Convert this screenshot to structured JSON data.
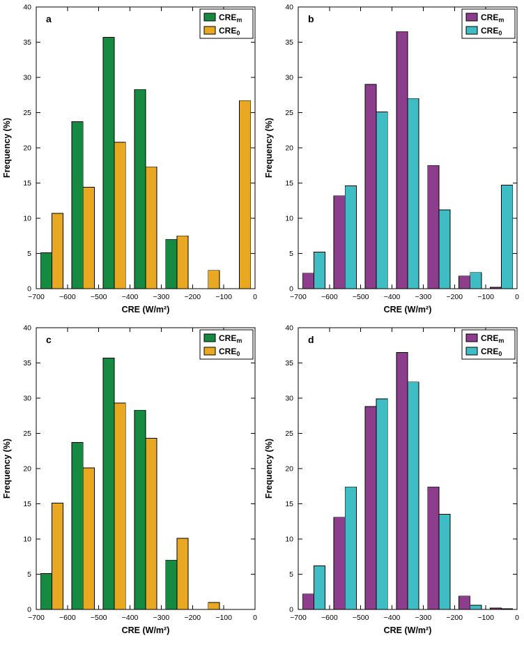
{
  "figure": {
    "background": "#ffffff",
    "panel_letters": [
      "a",
      "b",
      "c",
      "d"
    ]
  },
  "colors": {
    "green": "#178a42",
    "yellow": "#e9a821",
    "purple": "#8c3d8c",
    "cyan": "#3fbdc5",
    "axis": "#000000"
  },
  "chart_data": [
    {
      "type": "bar",
      "panel": "a",
      "categories": [
        -650,
        -550,
        -450,
        -350,
        -250,
        -150,
        -50
      ],
      "series": [
        {
          "name": "CRE_m",
          "label_main": "CRE",
          "label_sub": "m",
          "color": "#178a42",
          "values": [
            5.1,
            23.7,
            35.7,
            28.3,
            7.0,
            0,
            0
          ]
        },
        {
          "name": "CRE_0",
          "label_main": "CRE",
          "label_sub": "0",
          "color": "#e9a821",
          "values": [
            10.7,
            14.4,
            20.8,
            17.3,
            7.5,
            2.6,
            26.7
          ]
        }
      ],
      "xlabel": "CRE (W/m²)",
      "ylabel": "Frequency (%)",
      "xlim": [
        -700,
        0
      ],
      "ylim": [
        0,
        40
      ],
      "xticks": [
        -700,
        -600,
        -500,
        -400,
        -300,
        -200,
        -100,
        0
      ],
      "yticks": [
        0,
        5,
        10,
        15,
        20,
        25,
        30,
        35,
        40
      ],
      "bar_width_units": 36,
      "grid": false,
      "legend_position": "top-right"
    },
    {
      "type": "bar",
      "panel": "b",
      "categories": [
        -650,
        -550,
        -450,
        -350,
        -250,
        -150,
        -50
      ],
      "series": [
        {
          "name": "CRE_m",
          "label_main": "CRE",
          "label_sub": "m",
          "color": "#8c3d8c",
          "values": [
            2.2,
            13.2,
            29.0,
            36.5,
            17.5,
            1.8,
            0.2
          ]
        },
        {
          "name": "CRE_0",
          "label_main": "CRE",
          "label_sub": "0",
          "color": "#3fbdc5",
          "values": [
            5.2,
            14.6,
            25.1,
            27.0,
            11.2,
            2.3,
            14.7
          ]
        }
      ],
      "xlabel": "CRE (W/m²)",
      "ylabel": "Frequency (%)",
      "xlim": [
        -700,
        0
      ],
      "ylim": [
        0,
        40
      ],
      "xticks": [
        -700,
        -600,
        -500,
        -400,
        -300,
        -200,
        -100,
        0
      ],
      "yticks": [
        0,
        5,
        10,
        15,
        20,
        25,
        30,
        35,
        40
      ],
      "bar_width_units": 36,
      "grid": false,
      "legend_position": "top-right"
    },
    {
      "type": "bar",
      "panel": "c",
      "categories": [
        -650,
        -550,
        -450,
        -350,
        -250,
        -150,
        -50
      ],
      "series": [
        {
          "name": "CRE_m",
          "label_main": "CRE",
          "label_sub": "m",
          "color": "#178a42",
          "values": [
            5.1,
            23.7,
            35.7,
            28.3,
            7.0,
            0,
            0
          ]
        },
        {
          "name": "CRE_0",
          "label_main": "CRE",
          "label_sub": "0",
          "color": "#e9a821",
          "values": [
            15.1,
            20.1,
            29.3,
            24.3,
            10.1,
            1.0,
            0
          ]
        }
      ],
      "xlabel": "CRE (W/m²)",
      "ylabel": "Frequency (%)",
      "xlim": [
        -700,
        0
      ],
      "ylim": [
        0,
        40
      ],
      "xticks": [
        -700,
        -600,
        -500,
        -400,
        -300,
        -200,
        -100,
        0
      ],
      "yticks": [
        0,
        5,
        10,
        15,
        20,
        25,
        30,
        35,
        40
      ],
      "bar_width_units": 36,
      "grid": false,
      "legend_position": "top-right"
    },
    {
      "type": "bar",
      "panel": "d",
      "categories": [
        -650,
        -550,
        -450,
        -350,
        -250,
        -150,
        -50
      ],
      "series": [
        {
          "name": "CRE_m",
          "label_main": "CRE",
          "label_sub": "m",
          "color": "#8c3d8c",
          "values": [
            2.2,
            13.1,
            28.8,
            36.5,
            17.4,
            1.9,
            0.2
          ]
        },
        {
          "name": "CRE_0",
          "label_main": "CRE",
          "label_sub": "0",
          "color": "#3fbdc5",
          "values": [
            6.2,
            17.4,
            29.9,
            32.3,
            13.5,
            0.6,
            0.1
          ]
        }
      ],
      "xlabel": "CRE (W/m²)",
      "ylabel": "Frequency (%)",
      "xlim": [
        -700,
        0
      ],
      "ylim": [
        0,
        40
      ],
      "xticks": [
        -700,
        -600,
        -500,
        -400,
        -300,
        -200,
        -100,
        0
      ],
      "yticks": [
        0,
        5,
        10,
        15,
        20,
        25,
        30,
        35,
        40
      ],
      "bar_width_units": 36,
      "grid": false,
      "legend_position": "top-right"
    }
  ]
}
